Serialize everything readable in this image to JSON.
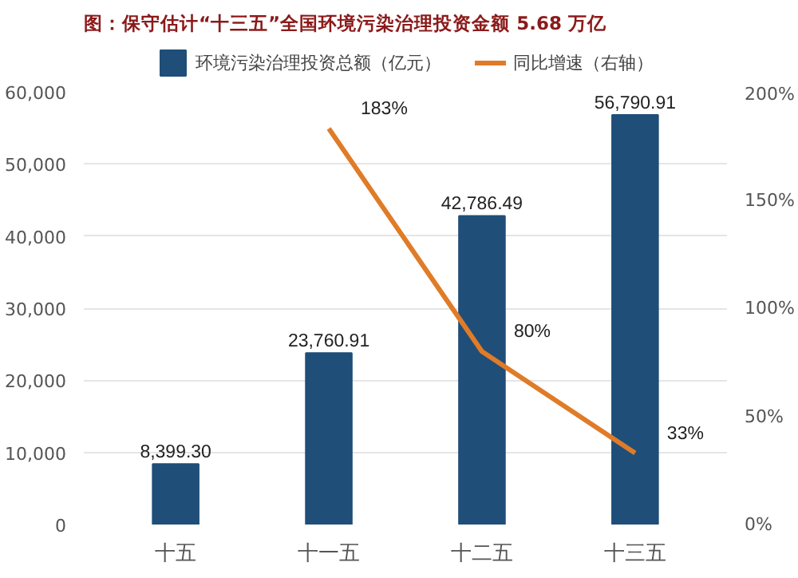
{
  "chart_data": {
    "type": "bar",
    "title": "图：保守估计“十三五”全国环境污染治理投资金额 5.68 万亿",
    "categories": [
      "十五",
      "十一五",
      "十二五",
      "十三五"
    ],
    "series": [
      {
        "name": "环境污染治理投资总额（亿元）",
        "color": "#1f4e79",
        "values": [
          8399.3,
          23760.91,
          42786.49,
          56790.91
        ],
        "value_labels": [
          "8,399.30",
          "23,760.91",
          "42,786.49",
          "56,790.91"
        ]
      },
      {
        "name": "同比增速（右轴）",
        "type": "line",
        "axis": "y2",
        "color": "#e07b28",
        "values": [
          null,
          183,
          80,
          33
        ],
        "value_labels": [
          null,
          "183%",
          "80%",
          "33%"
        ]
      }
    ],
    "ylim": [
      0,
      60000
    ],
    "yticks": [
      {
        "value": 0,
        "label": "0"
      },
      {
        "value": 10000,
        "label": "10,000"
      },
      {
        "value": 20000,
        "label": "20,000"
      },
      {
        "value": 30000,
        "label": "30,000"
      },
      {
        "value": 40000,
        "label": "40,000"
      },
      {
        "value": 50000,
        "label": "50,000"
      },
      {
        "value": 60000,
        "label": "60,000"
      }
    ],
    "y2lim": [
      0,
      200
    ],
    "y2ticks": [
      {
        "value": 0,
        "label": "0%"
      },
      {
        "value": 50,
        "label": "50%"
      },
      {
        "value": 100,
        "label": "100%"
      },
      {
        "value": 150,
        "label": "150%"
      },
      {
        "value": 200,
        "label": "200%"
      }
    ],
    "grid": "y",
    "legend": "top"
  }
}
